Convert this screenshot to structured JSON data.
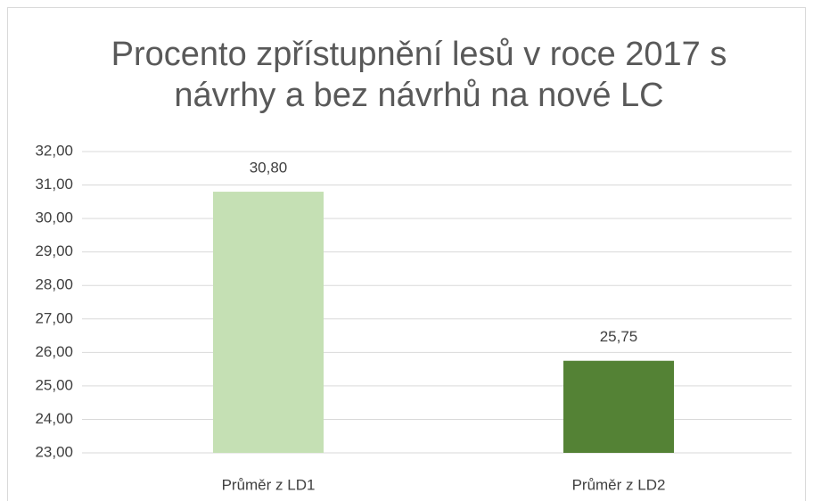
{
  "chart_data": {
    "type": "bar",
    "title": "Procento zpřístupnění lesů v roce 2017 s návrhy a bez návrhů na nové LC",
    "categories": [
      "Průměr z LD1",
      "Průměr z LD2"
    ],
    "values": [
      30.8,
      25.75
    ],
    "value_labels": [
      "30,80",
      "25,75"
    ],
    "colors": [
      "#c5e0b4",
      "#548235"
    ],
    "ylim": [
      23,
      32
    ],
    "yticks": [
      {
        "value": 23,
        "label": "23,00"
      },
      {
        "value": 24,
        "label": "24,00"
      },
      {
        "value": 25,
        "label": "25,00"
      },
      {
        "value": 26,
        "label": "26,00"
      },
      {
        "value": 27,
        "label": "27,00"
      },
      {
        "value": 28,
        "label": "28,00"
      },
      {
        "value": 29,
        "label": "29,00"
      },
      {
        "value": 30,
        "label": "30,00"
      },
      {
        "value": 31,
        "label": "31,00"
      },
      {
        "value": 32,
        "label": "32,00"
      }
    ],
    "grid": true
  }
}
